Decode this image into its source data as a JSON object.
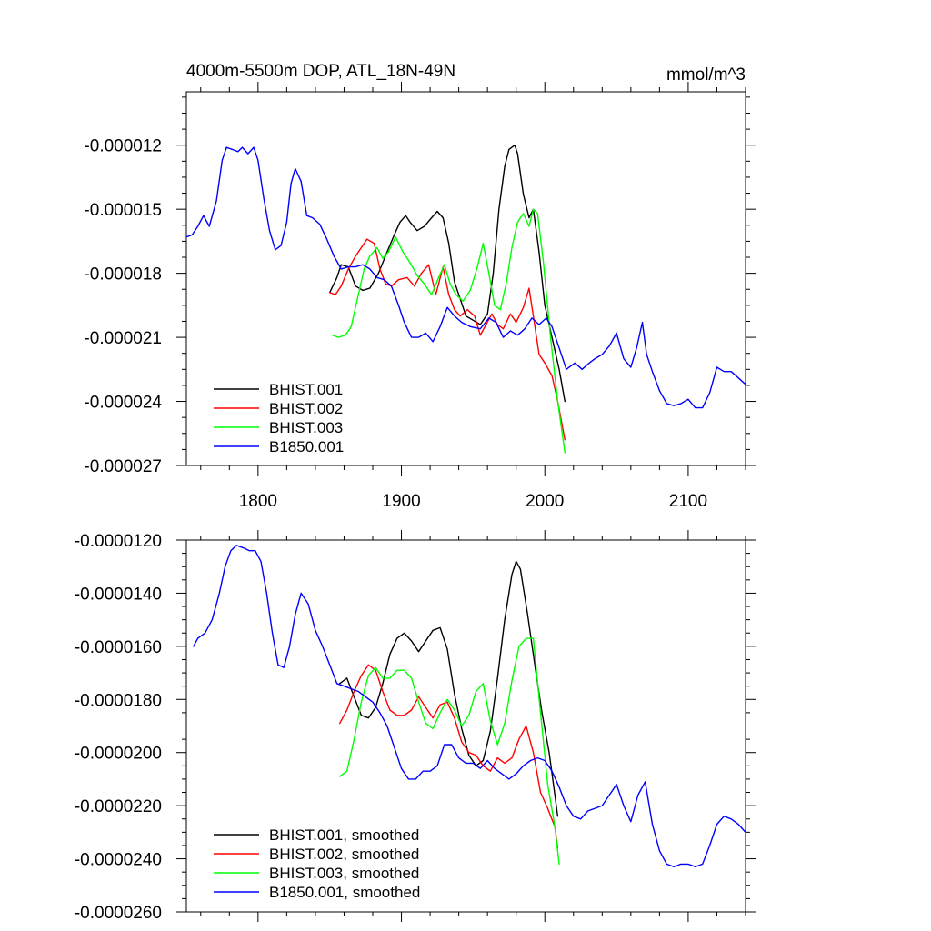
{
  "chart_data": [
    {
      "type": "line",
      "title": "4000m-5500m DOP, ATL_18N-49N",
      "units_label": "mmol/m^3",
      "xlim": [
        1750,
        2140
      ],
      "ylim": [
        -2.7e-05,
        -9.5e-06
      ],
      "x_ticks": [
        {
          "value": 1800,
          "label": "1800"
        },
        {
          "value": 1900,
          "label": "1900"
        },
        {
          "value": 2000,
          "label": "2000"
        },
        {
          "value": 2100,
          "label": "2100"
        }
      ],
      "y_ticks": [
        {
          "value": -1.2e-05,
          "label": "-0.000012"
        },
        {
          "value": -1.5e-05,
          "label": "-0.000015"
        },
        {
          "value": -1.8e-05,
          "label": "-0.000018"
        },
        {
          "value": -2.1e-05,
          "label": "-0.000021"
        },
        {
          "value": -2.4e-05,
          "label": "-0.000024"
        },
        {
          "value": -2.7e-05,
          "label": "-0.000027"
        }
      ],
      "legend_position": "bottom-left",
      "series": [
        {
          "name": "BHIST.001",
          "color": "#000000",
          "x": [
            1850,
            1855,
            1858,
            1863,
            1868,
            1873,
            1878,
            1884,
            1890,
            1895,
            1899,
            1903,
            1906,
            1911,
            1916,
            1921,
            1925,
            1929,
            1933,
            1937,
            1941,
            1945,
            1950,
            1955,
            1960,
            1964,
            1968,
            1972,
            1975,
            1979,
            1981,
            1985,
            1989,
            1992,
            1996,
            2000,
            2005,
            2010,
            2014
          ],
          "y": [
            -1.89e-05,
            -1.82e-05,
            -1.76e-05,
            -1.77e-05,
            -1.86e-05,
            -1.88e-05,
            -1.87e-05,
            -1.8e-05,
            -1.7e-05,
            -1.62e-05,
            -1.56e-05,
            -1.53e-05,
            -1.56e-05,
            -1.6e-05,
            -1.58e-05,
            -1.54e-05,
            -1.51e-05,
            -1.54e-05,
            -1.66e-05,
            -1.84e-05,
            -1.92e-05,
            -2e-05,
            -2.02e-05,
            -2.04e-05,
            -1.99e-05,
            -1.8e-05,
            -1.5e-05,
            -1.3e-05,
            -1.22e-05,
            -1.2e-05,
            -1.24e-05,
            -1.43e-05,
            -1.54e-05,
            -1.5e-05,
            -1.7e-05,
            -1.95e-05,
            -2.1e-05,
            -2.25e-05,
            -2.4e-05
          ]
        },
        {
          "name": "BHIST.002",
          "color": "#ff0000",
          "x": [
            1850,
            1854,
            1858,
            1863,
            1868,
            1873,
            1876,
            1881,
            1885,
            1889,
            1893,
            1898,
            1904,
            1909,
            1914,
            1919,
            1924,
            1929,
            1933,
            1937,
            1941,
            1946,
            1951,
            1955,
            1959,
            1963,
            1967,
            1971,
            1976,
            1980,
            1985,
            1989,
            1992,
            1996,
            2000,
            2005,
            2009,
            2014
          ],
          "y": [
            -1.89e-05,
            -1.9e-05,
            -1.86e-05,
            -1.78e-05,
            -1.72e-05,
            -1.67e-05,
            -1.64e-05,
            -1.66e-05,
            -1.78e-05,
            -1.85e-05,
            -1.86e-05,
            -1.83e-05,
            -1.82e-05,
            -1.86e-05,
            -1.8e-05,
            -1.76e-05,
            -1.9e-05,
            -1.77e-05,
            -1.9e-05,
            -1.97e-05,
            -2e-05,
            -1.97e-05,
            -2e-05,
            -2.09e-05,
            -2.04e-05,
            -1.99e-05,
            -2.04e-05,
            -2.06e-05,
            -1.99e-05,
            -2.03e-05,
            -1.96e-05,
            -1.87e-05,
            -2e-05,
            -2.18e-05,
            -2.22e-05,
            -2.28e-05,
            -2.4e-05,
            -2.58e-05
          ]
        },
        {
          "name": "BHIST.003",
          "color": "#00ff00",
          "x": [
            1852,
            1856,
            1861,
            1865,
            1870,
            1874,
            1878,
            1883,
            1887,
            1891,
            1896,
            1901,
            1906,
            1911,
            1916,
            1921,
            1926,
            1930,
            1934,
            1938,
            1943,
            1948,
            1953,
            1957,
            1961,
            1965,
            1969,
            1973,
            1977,
            1981,
            1985,
            1989,
            1992,
            1995,
            1999,
            2004,
            2009,
            2014
          ],
          "y": [
            -2.09e-05,
            -2.1e-05,
            -2.09e-05,
            -2.05e-05,
            -1.9e-05,
            -1.78e-05,
            -1.72e-05,
            -1.68e-05,
            -1.73e-05,
            -1.7e-05,
            -1.63e-05,
            -1.7e-05,
            -1.75e-05,
            -1.81e-05,
            -1.85e-05,
            -1.9e-05,
            -1.82e-05,
            -1.76e-05,
            -1.85e-05,
            -1.9e-05,
            -1.93e-05,
            -1.88e-05,
            -1.77e-05,
            -1.66e-05,
            -1.8e-05,
            -1.95e-05,
            -1.97e-05,
            -1.85e-05,
            -1.68e-05,
            -1.56e-05,
            -1.52e-05,
            -1.58e-05,
            -1.5e-05,
            -1.52e-05,
            -1.75e-05,
            -2.1e-05,
            -2.4e-05,
            -2.64e-05
          ]
        },
        {
          "name": "B1850.001",
          "color": "#0000ff",
          "x": [
            1750,
            1754,
            1758,
            1762,
            1766,
            1771,
            1775,
            1778,
            1782,
            1786,
            1789,
            1793,
            1797,
            1800,
            1804,
            1808,
            1812,
            1816,
            1820,
            1823,
            1826,
            1830,
            1834,
            1838,
            1843,
            1848,
            1853,
            1858,
            1863,
            1868,
            1873,
            1878,
            1883,
            1888,
            1893,
            1898,
            1902,
            1907,
            1912,
            1917,
            1922,
            1927,
            1932,
            1937,
            1942,
            1948,
            1955,
            1961,
            1966,
            1971,
            1976,
            1981,
            1986,
            1991,
            1996,
            2001,
            2005,
            2010,
            2015,
            2021,
            2026,
            2031,
            2035,
            2040,
            2045,
            2050,
            2055,
            2060,
            2064,
            2068,
            2071,
            2075,
            2080,
            2085,
            2090,
            2095,
            2100,
            2105,
            2110,
            2115,
            2120,
            2125,
            2130,
            2135,
            2140
          ],
          "y": [
            -1.63e-05,
            -1.62e-05,
            -1.58e-05,
            -1.53e-05,
            -1.58e-05,
            -1.46e-05,
            -1.27e-05,
            -1.21e-05,
            -1.22e-05,
            -1.23e-05,
            -1.21e-05,
            -1.24e-05,
            -1.21e-05,
            -1.27e-05,
            -1.45e-05,
            -1.6e-05,
            -1.69e-05,
            -1.67e-05,
            -1.56e-05,
            -1.38e-05,
            -1.31e-05,
            -1.37e-05,
            -1.53e-05,
            -1.54e-05,
            -1.57e-05,
            -1.64e-05,
            -1.72e-05,
            -1.78e-05,
            -1.77e-05,
            -1.77e-05,
            -1.76e-05,
            -1.78e-05,
            -1.82e-05,
            -1.83e-05,
            -1.86e-05,
            -1.95e-05,
            -2.03e-05,
            -2.1e-05,
            -2.1e-05,
            -2.08e-05,
            -2.12e-05,
            -2.05e-05,
            -1.96e-05,
            -2e-05,
            -2.03e-05,
            -2.05e-05,
            -2.06e-05,
            -2.01e-05,
            -2.03e-05,
            -2.1e-05,
            -2.07e-05,
            -2.09e-05,
            -2.06e-05,
            -2.01e-05,
            -2.04e-05,
            -2.01e-05,
            -2.05e-05,
            -2.15e-05,
            -2.25e-05,
            -2.22e-05,
            -2.25e-05,
            -2.22e-05,
            -2.2e-05,
            -2.18e-05,
            -2.14e-05,
            -2.08e-05,
            -2.2e-05,
            -2.24e-05,
            -2.15e-05,
            -2.03e-05,
            -2.18e-05,
            -2.26e-05,
            -2.35e-05,
            -2.41e-05,
            -2.42e-05,
            -2.41e-05,
            -2.39e-05,
            -2.43e-05,
            -2.43e-05,
            -2.36e-05,
            -2.24e-05,
            -2.26e-05,
            -2.26e-05,
            -2.29e-05,
            -2.32e-05
          ]
        }
      ]
    },
    {
      "type": "line",
      "title": "",
      "xlim": [
        1750,
        2140
      ],
      "ylim": [
        -2.6e-05,
        -1.2e-05
      ],
      "x_ticks": [
        {
          "value": 1800,
          "label": ""
        },
        {
          "value": 1900,
          "label": ""
        },
        {
          "value": 2000,
          "label": ""
        },
        {
          "value": 2100,
          "label": ""
        }
      ],
      "y_ticks": [
        {
          "value": -1.2e-05,
          "label": "-0.0000120"
        },
        {
          "value": -1.4e-05,
          "label": "-0.0000140"
        },
        {
          "value": -1.6e-05,
          "label": "-0.0000160"
        },
        {
          "value": -1.8e-05,
          "label": "-0.0000180"
        },
        {
          "value": -2e-05,
          "label": "-0.0000200"
        },
        {
          "value": -2.2e-05,
          "label": "-0.0000220"
        },
        {
          "value": -2.4e-05,
          "label": "-0.0000240"
        },
        {
          "value": -2.6e-05,
          "label": "-0.0000260"
        }
      ],
      "legend_position": "bottom-left",
      "series": [
        {
          "name": "BHIST.001, smoothed",
          "color": "#000000",
          "x": [
            1857,
            1862,
            1867,
            1872,
            1877,
            1882,
            1887,
            1892,
            1897,
            1902,
            1907,
            1912,
            1917,
            1922,
            1927,
            1932,
            1937,
            1942,
            1947,
            1952,
            1957,
            1962,
            1967,
            1972,
            1977,
            1980,
            1983,
            1988,
            1993,
            1998,
            2003,
            2009
          ],
          "y": [
            -1.74e-05,
            -1.72e-05,
            -1.79e-05,
            -1.86e-05,
            -1.87e-05,
            -1.83e-05,
            -1.74e-05,
            -1.63e-05,
            -1.57e-05,
            -1.55e-05,
            -1.58e-05,
            -1.62e-05,
            -1.58e-05,
            -1.54e-05,
            -1.53e-05,
            -1.61e-05,
            -1.78e-05,
            -1.91e-05,
            -2.01e-05,
            -2.05e-05,
            -2.03e-05,
            -1.92e-05,
            -1.72e-05,
            -1.5e-05,
            -1.33e-05,
            -1.28e-05,
            -1.31e-05,
            -1.48e-05,
            -1.67e-05,
            -1.85e-05,
            -2e-05,
            -2.24e-05
          ]
        },
        {
          "name": "BHIST.002, smoothed",
          "color": "#ff0000",
          "x": [
            1857,
            1862,
            1867,
            1872,
            1877,
            1882,
            1887,
            1892,
            1897,
            1902,
            1907,
            1912,
            1917,
            1922,
            1927,
            1932,
            1937,
            1942,
            1947,
            1952,
            1957,
            1962,
            1967,
            1972,
            1977,
            1982,
            1987,
            1992,
            1997,
            2002,
            2007,
            2009
          ],
          "y": [
            -1.89e-05,
            -1.84e-05,
            -1.77e-05,
            -1.71e-05,
            -1.67e-05,
            -1.69e-05,
            -1.77e-05,
            -1.84e-05,
            -1.86e-05,
            -1.86e-05,
            -1.84e-05,
            -1.79e-05,
            -1.83e-05,
            -1.87e-05,
            -1.82e-05,
            -1.81e-05,
            -1.87e-05,
            -1.96e-05,
            -2e-05,
            -2.01e-05,
            -2.05e-05,
            -2.07e-05,
            -2.02e-05,
            -2.04e-05,
            -2.02e-05,
            -1.95e-05,
            -1.9e-05,
            -2e-05,
            -2.15e-05,
            -2.21e-05,
            -2.28e-05,
            -2.36e-05
          ]
        },
        {
          "name": "BHIST.003, smoothed",
          "color": "#00ff00",
          "x": [
            1857,
            1862,
            1867,
            1872,
            1877,
            1882,
            1887,
            1892,
            1897,
            1902,
            1907,
            1912,
            1917,
            1922,
            1927,
            1932,
            1937,
            1942,
            1947,
            1952,
            1957,
            1962,
            1967,
            1972,
            1977,
            1982,
            1987,
            1992,
            1997,
            2002,
            2007,
            2010
          ],
          "y": [
            -2.09e-05,
            -2.07e-05,
            -1.95e-05,
            -1.81e-05,
            -1.71e-05,
            -1.68e-05,
            -1.72e-05,
            -1.72e-05,
            -1.69e-05,
            -1.69e-05,
            -1.72e-05,
            -1.81e-05,
            -1.89e-05,
            -1.91e-05,
            -1.85e-05,
            -1.8e-05,
            -1.84e-05,
            -1.9e-05,
            -1.86e-05,
            -1.77e-05,
            -1.74e-05,
            -1.88e-05,
            -1.97e-05,
            -1.89e-05,
            -1.73e-05,
            -1.6e-05,
            -1.57e-05,
            -1.57e-05,
            -1.85e-05,
            -2.12e-05,
            -2.28e-05,
            -2.42e-05
          ]
        },
        {
          "name": "B1850.001, smoothed",
          "color": "#0000ff",
          "x": [
            1755,
            1758,
            1763,
            1768,
            1773,
            1777,
            1781,
            1785,
            1790,
            1794,
            1798,
            1802,
            1806,
            1810,
            1814,
            1818,
            1822,
            1826,
            1830,
            1835,
            1840,
            1845,
            1850,
            1855,
            1860,
            1865,
            1870,
            1875,
            1880,
            1885,
            1890,
            1895,
            1900,
            1905,
            1910,
            1915,
            1920,
            1925,
            1930,
            1935,
            1940,
            1945,
            1950,
            1955,
            1960,
            1965,
            1970,
            1975,
            1980,
            1985,
            1990,
            1995,
            2000,
            2005,
            2010,
            2015,
            2020,
            2025,
            2030,
            2035,
            2040,
            2045,
            2050,
            2055,
            2060,
            2065,
            2070,
            2075,
            2080,
            2085,
            2090,
            2095,
            2100,
            2105,
            2110,
            2115,
            2120,
            2125,
            2130,
            2135,
            2140
          ],
          "y": [
            -1.6e-05,
            -1.57e-05,
            -1.55e-05,
            -1.5e-05,
            -1.4e-05,
            -1.3e-05,
            -1.24e-05,
            -1.22e-05,
            -1.23e-05,
            -1.24e-05,
            -1.24e-05,
            -1.28e-05,
            -1.4e-05,
            -1.55e-05,
            -1.67e-05,
            -1.68e-05,
            -1.6e-05,
            -1.48e-05,
            -1.4e-05,
            -1.44e-05,
            -1.54e-05,
            -1.6e-05,
            -1.67e-05,
            -1.74e-05,
            -1.75e-05,
            -1.76e-05,
            -1.77e-05,
            -1.79e-05,
            -1.81e-05,
            -1.85e-05,
            -1.9e-05,
            -1.98e-05,
            -2.06e-05,
            -2.1e-05,
            -2.1e-05,
            -2.07e-05,
            -2.07e-05,
            -2.05e-05,
            -1.97e-05,
            -1.97e-05,
            -2.02e-05,
            -2.04e-05,
            -2.04e-05,
            -2.06e-05,
            -2.03e-05,
            -2.06e-05,
            -2.08e-05,
            -2.1e-05,
            -2.08e-05,
            -2.05e-05,
            -2.03e-05,
            -2.02e-05,
            -2.03e-05,
            -2.07e-05,
            -2.13e-05,
            -2.2e-05,
            -2.24e-05,
            -2.25e-05,
            -2.22e-05,
            -2.21e-05,
            -2.2e-05,
            -2.16e-05,
            -2.12e-05,
            -2.2e-05,
            -2.26e-05,
            -2.16e-05,
            -2.11e-05,
            -2.27e-05,
            -2.37e-05,
            -2.42e-05,
            -2.43e-05,
            -2.42e-05,
            -2.42e-05,
            -2.43e-05,
            -2.42e-05,
            -2.35e-05,
            -2.27e-05,
            -2.24e-05,
            -2.25e-05,
            -2.27e-05,
            -2.3e-05
          ]
        }
      ]
    }
  ]
}
